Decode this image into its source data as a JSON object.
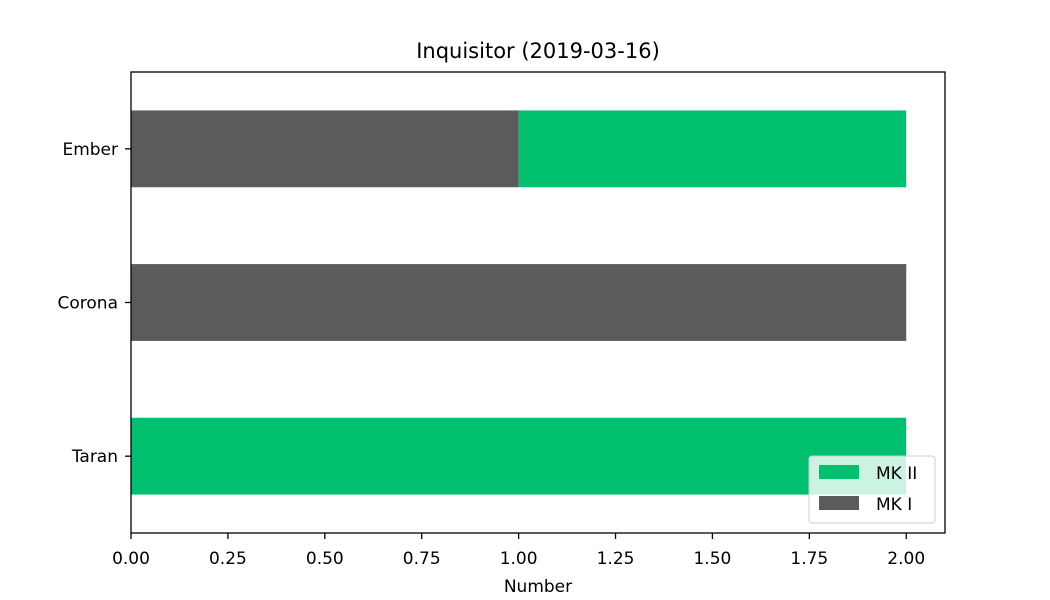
{
  "chart_data": {
    "type": "bar",
    "orientation": "horizontal",
    "stacked": true,
    "title": "Inquisitor (2019-03-16)",
    "xlabel": "Number",
    "ylabel": "",
    "categories": [
      "Ember",
      "Corona",
      "Taran"
    ],
    "series": [
      {
        "name": "MK I",
        "values": [
          1,
          2,
          0
        ],
        "color": "#5a5c5b"
      },
      {
        "name": "MK II",
        "values": [
          1,
          0,
          2
        ],
        "color": "#00bf6f"
      }
    ],
    "xlim": [
      0,
      2.1
    ],
    "xticks": [
      "0.00",
      "0.25",
      "0.50",
      "0.75",
      "1.00",
      "1.25",
      "1.50",
      "1.75",
      "2.00"
    ],
    "legend": {
      "position": "lower-right",
      "entries": [
        "MK II",
        "MK I"
      ]
    },
    "grid": false
  }
}
